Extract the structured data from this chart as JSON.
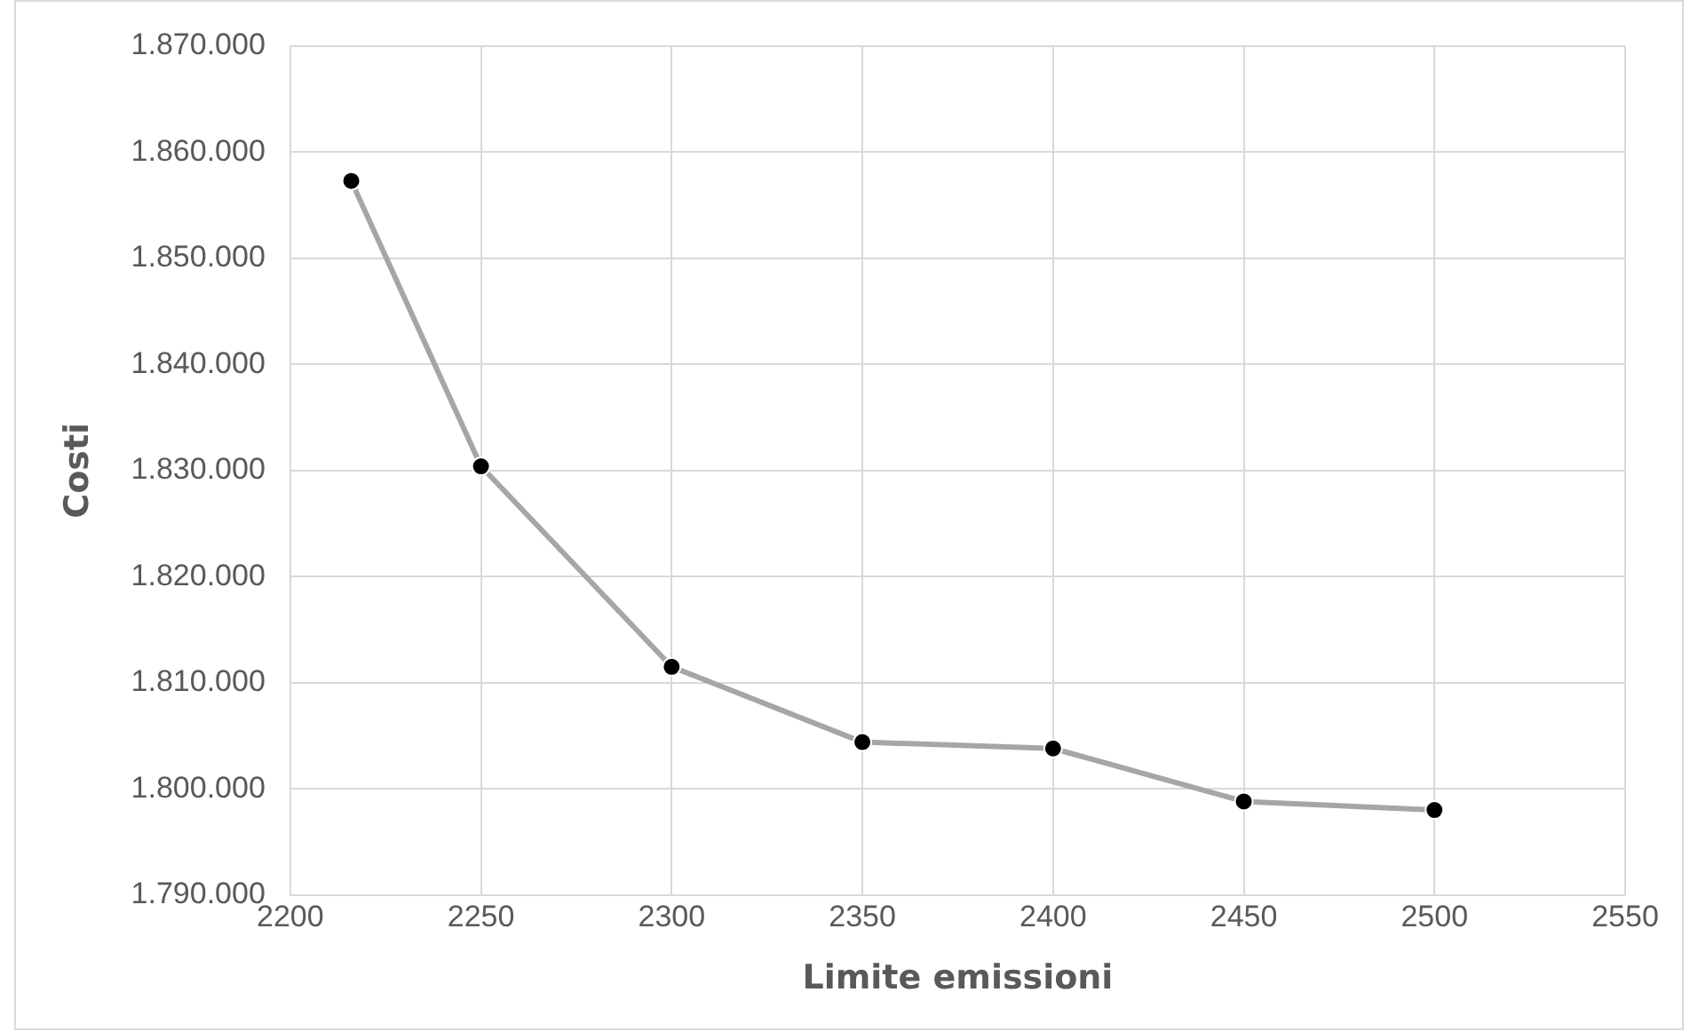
{
  "chart_data": {
    "type": "line",
    "xlabel": "Limite emissioni",
    "ylabel": "Costi",
    "x": [
      2216,
      2250,
      2300,
      2350,
      2400,
      2450,
      2500
    ],
    "series": [
      {
        "color": "#a6a6a6",
        "values": [
          1857300,
          1830400,
          1811500,
          1804400,
          1803800,
          1798800,
          1798000
        ]
      }
    ],
    "xlim": [
      2200,
      2550
    ],
    "xticks": [
      2200,
      2250,
      2300,
      2350,
      2400,
      2450,
      2500,
      2550
    ],
    "ylim": [
      1790000,
      1870000
    ],
    "yticks": [
      {
        "value": 1790000,
        "label": "1.790.000"
      },
      {
        "value": 1800000,
        "label": "1.800.000"
      },
      {
        "value": 1810000,
        "label": "1.810.000"
      },
      {
        "value": 1820000,
        "label": "1.820.000"
      },
      {
        "value": 1830000,
        "label": "1.830.000"
      },
      {
        "value": 1840000,
        "label": "1.840.000"
      },
      {
        "value": 1850000,
        "label": "1.850.000"
      },
      {
        "value": 1860000,
        "label": "1.860.000"
      },
      {
        "value": 1870000,
        "label": "1.870.000"
      }
    ],
    "grid": true,
    "legend": false,
    "marker": "circle",
    "line_style": "solid"
  }
}
